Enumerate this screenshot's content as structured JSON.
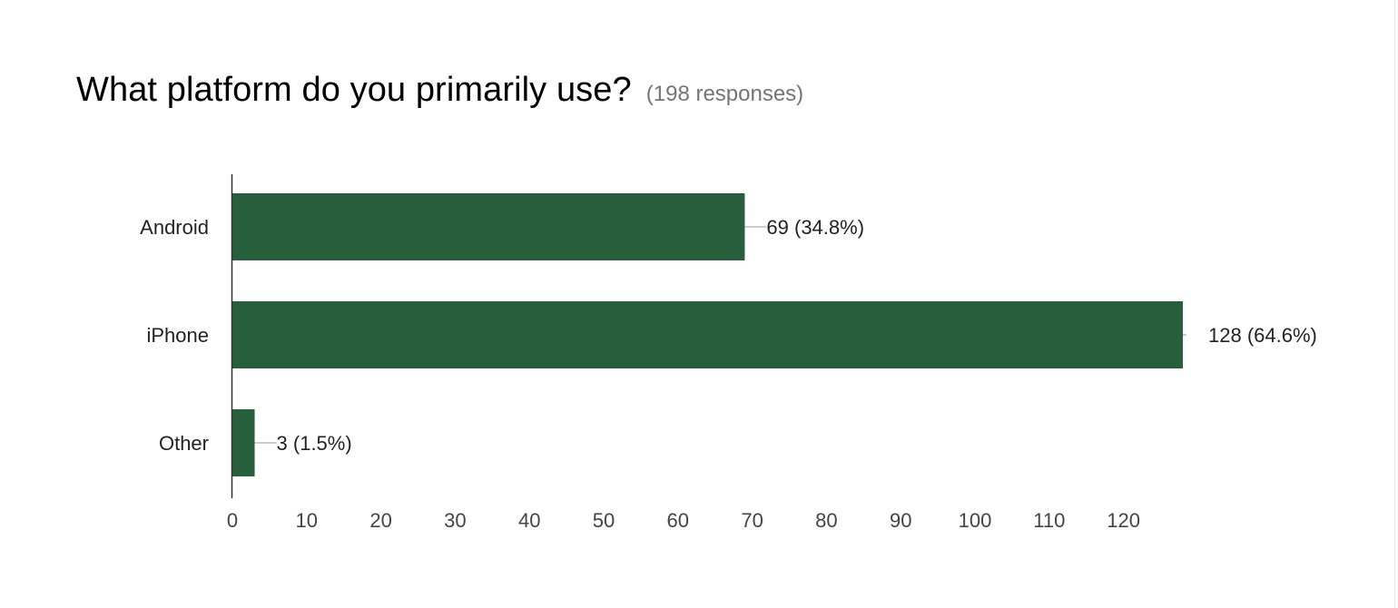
{
  "question": {
    "title": "What platform do you primarily use?",
    "responses": "(198 responses)"
  },
  "chart_data": {
    "type": "bar",
    "orientation": "horizontal",
    "categories": [
      "Android",
      "iPhone",
      "Other"
    ],
    "values": [
      69,
      128,
      3
    ],
    "value_labels": [
      "69 (34.8%)",
      "128 (64.6%)",
      "3 (1.5%)"
    ],
    "xticks": [
      0,
      10,
      20,
      30,
      40,
      50,
      60,
      70,
      80,
      90,
      100,
      110,
      120
    ],
    "xlim": [
      0,
      128
    ],
    "grid": false,
    "bar_color": "#275e3c"
  }
}
